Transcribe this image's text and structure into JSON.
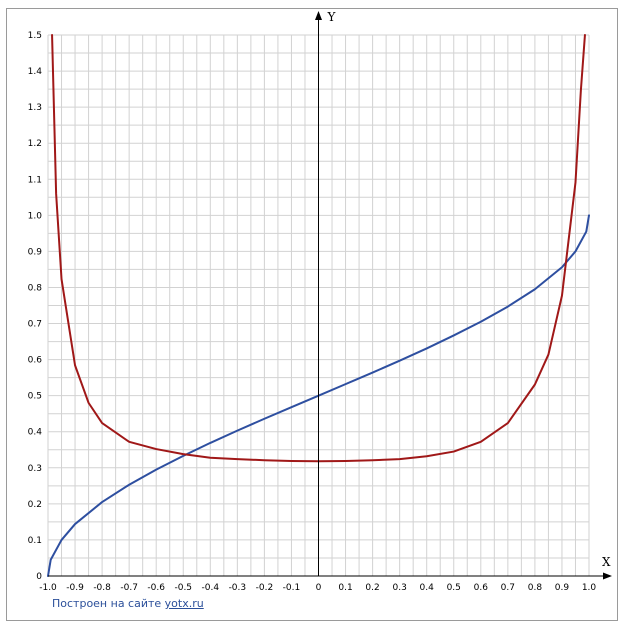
{
  "chart_data": {
    "type": "line",
    "title": "",
    "xlabel": "X",
    "ylabel": "Y",
    "xlim": [
      -1.0,
      1.0
    ],
    "ylim": [
      0,
      1.5
    ],
    "grid": true,
    "x_ticks": [
      "-1.0",
      "-0.9",
      "-0.8",
      "-0.7",
      "-0.6",
      "-0.5",
      "-0.4",
      "-0.3",
      "-0.2",
      "-0.1",
      "0",
      "0.1",
      "0.2",
      "0.3",
      "0.4",
      "0.5",
      "0.6",
      "0.7",
      "0.8",
      "0.9",
      "1.0"
    ],
    "y_ticks": [
      "0",
      "0.1",
      "0.2",
      "0.3",
      "0.4",
      "0.5",
      "0.6",
      "0.7",
      "0.8",
      "0.9",
      "1.0",
      "1.1",
      "1.2",
      "1.3",
      "1.4",
      "1.5"
    ],
    "series": [
      {
        "color": "#2e4fa0",
        "x": [
          -1.0,
          -0.99,
          -0.95,
          -0.9,
          -0.8,
          -0.7,
          -0.6,
          -0.5,
          -0.4,
          -0.3,
          -0.2,
          -0.1,
          0,
          0.1,
          0.2,
          0.3,
          0.4,
          0.5,
          0.6,
          0.7,
          0.8,
          0.9,
          0.95,
          0.99,
          1.0
        ],
        "y": [
          0,
          0.045,
          0.1,
          0.144,
          0.205,
          0.253,
          0.295,
          0.333,
          0.369,
          0.403,
          0.436,
          0.468,
          0.5,
          0.532,
          0.564,
          0.597,
          0.631,
          0.667,
          0.705,
          0.747,
          0.795,
          0.856,
          0.9,
          0.955,
          1.0
        ]
      },
      {
        "color": "#a01818",
        "x": [
          -0.985,
          -0.97,
          -0.95,
          -0.9,
          -0.85,
          -0.8,
          -0.7,
          -0.6,
          -0.5,
          -0.4,
          -0.3,
          -0.2,
          -0.1,
          0,
          0.1,
          0.2,
          0.3,
          0.4,
          0.5,
          0.6,
          0.7,
          0.8,
          0.85,
          0.9,
          0.95,
          0.97,
          0.985
        ],
        "y": [
          1.5,
          1.06,
          0.823,
          0.584,
          0.48,
          0.424,
          0.372,
          0.352,
          0.338,
          0.328,
          0.324,
          0.321,
          0.319,
          0.318,
          0.319,
          0.321,
          0.324,
          0.332,
          0.345,
          0.372,
          0.424,
          0.531,
          0.614,
          0.777,
          1.091,
          1.347,
          1.5
        ]
      }
    ]
  },
  "credit": {
    "text": "Построен на сайте",
    "link": "yotx.ru"
  },
  "colors": {
    "grid": "#d2d2d2",
    "axis": "#000000",
    "frame": "#9a9a9a",
    "link": "#2b4f9a"
  }
}
